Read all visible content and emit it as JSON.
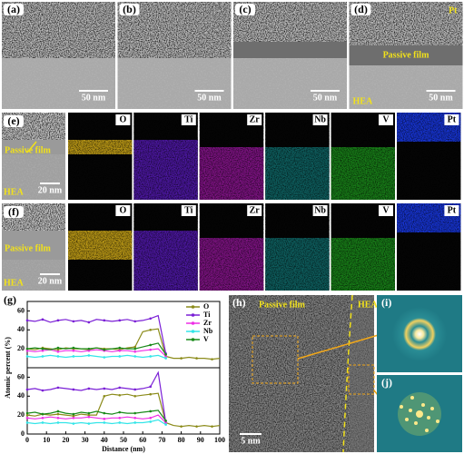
{
  "row1": [
    {
      "label": "(a)",
      "scale": "50 nm"
    },
    {
      "label": "(b)",
      "scale": "50 nm"
    },
    {
      "label": "(c)",
      "scale": "50 nm"
    },
    {
      "label": "(d)",
      "scale": "50 nm",
      "top": "Pt",
      "film": "Passive film",
      "base": "HEA"
    }
  ],
  "row_e": {
    "label": "(e)",
    "film": "Passive film",
    "base": "HEA",
    "scale": "20 nm",
    "elements": [
      "O",
      "Ti",
      "Zr",
      "Nb",
      "V",
      "Pt"
    ]
  },
  "row_f": {
    "label": "(f)",
    "film": "Passive film",
    "base": "HEA",
    "scale": "20 nm",
    "elements": [
      "O",
      "Ti",
      "Zr",
      "Nb",
      "V",
      "Pt"
    ]
  },
  "g": {
    "label": "(g)"
  },
  "h": {
    "label": "(h)",
    "film": "Passive film",
    "base": "HEA",
    "scale": "5 nm"
  },
  "i": {
    "label": "(i)"
  },
  "j": {
    "label": "(j)"
  },
  "chart_data": [
    {
      "type": "line",
      "ylabel": "Atomic percent (%)",
      "x": [
        0,
        4,
        8,
        12,
        16,
        20,
        24,
        28,
        32,
        36,
        40,
        44,
        48,
        52,
        56,
        60,
        64,
        68,
        72,
        76,
        80,
        84,
        88,
        92,
        96,
        100
      ],
      "xlim": [
        0,
        100
      ],
      "ylim": [
        0,
        70
      ],
      "yticks": [
        20,
        40,
        60
      ],
      "series": [
        {
          "name": "O",
          "color": "#8b8b1a",
          "values": [
            20,
            19,
            21,
            20,
            19,
            21,
            20,
            20,
            19,
            21,
            20,
            20,
            19,
            21,
            22,
            38,
            40,
            41,
            12,
            10,
            10,
            11,
            10,
            10,
            9,
            10
          ]
        },
        {
          "name": "Ti",
          "color": "#7a1fd6",
          "values": [
            50,
            49,
            51,
            48,
            50,
            51,
            49,
            50,
            48,
            51,
            50,
            49,
            50,
            51,
            49,
            50,
            52,
            55,
            15,
            null,
            null,
            null,
            null,
            null,
            null,
            null
          ]
        },
        {
          "name": "Zr",
          "color": "#ee2ee6",
          "values": [
            18,
            17,
            18,
            19,
            17,
            18,
            18,
            17,
            18,
            19,
            18,
            17,
            18,
            18,
            17,
            18,
            19,
            20,
            12,
            null,
            null,
            null,
            null,
            null,
            null,
            null
          ]
        },
        {
          "name": "Nb",
          "color": "#33e5e8",
          "values": [
            12,
            11,
            12,
            13,
            12,
            11,
            12,
            12,
            13,
            12,
            11,
            12,
            12,
            13,
            12,
            11,
            12,
            13,
            10,
            null,
            null,
            null,
            null,
            null,
            null,
            null
          ]
        },
        {
          "name": "V",
          "color": "#1a8a1a",
          "values": [
            20,
            21,
            20,
            19,
            21,
            20,
            21,
            20,
            20,
            21,
            19,
            20,
            21,
            20,
            20,
            22,
            24,
            26,
            14,
            null,
            null,
            null,
            null,
            null,
            null,
            null
          ]
        }
      ]
    },
    {
      "type": "line",
      "xlabel": "Distance (nm)",
      "x": [
        0,
        4,
        8,
        12,
        16,
        20,
        24,
        28,
        32,
        36,
        40,
        44,
        48,
        52,
        56,
        60,
        64,
        68,
        72,
        76,
        80,
        84,
        88,
        92,
        96,
        100
      ],
      "xlim": [
        0,
        100
      ],
      "xticks": [
        0,
        10,
        20,
        30,
        40,
        50,
        60,
        70,
        80,
        90,
        100
      ],
      "ylim": [
        0,
        70
      ],
      "yticks": [
        0,
        20,
        40,
        60
      ],
      "series": [
        {
          "color": "#8b8b1a",
          "values": [
            20,
            19,
            21,
            20,
            21,
            20,
            19,
            21,
            20,
            20,
            40,
            42,
            41,
            42,
            40,
            41,
            42,
            43,
            12,
            9,
            8,
            9,
            8,
            9,
            8,
            9
          ]
        },
        {
          "color": "#7a1fd6",
          "values": [
            47,
            48,
            46,
            47,
            49,
            48,
            47,
            46,
            48,
            47,
            48,
            47,
            49,
            48,
            47,
            48,
            50,
            65,
            12,
            null,
            null,
            null,
            null,
            null,
            null,
            null
          ]
        },
        {
          "color": "#ee2ee6",
          "values": [
            17,
            16,
            17,
            18,
            17,
            16,
            17,
            17,
            18,
            17,
            16,
            17,
            17,
            18,
            17,
            16,
            17,
            20,
            12,
            null,
            null,
            null,
            null,
            null,
            null,
            null
          ]
        },
        {
          "color": "#33e5e8",
          "values": [
            12,
            11,
            12,
            11,
            12,
            12,
            11,
            12,
            11,
            12,
            12,
            11,
            12,
            11,
            12,
            12,
            13,
            15,
            10,
            null,
            null,
            null,
            null,
            null,
            null,
            null
          ]
        },
        {
          "color": "#1a8a1a",
          "values": [
            22,
            23,
            21,
            22,
            24,
            22,
            21,
            23,
            22,
            24,
            22,
            21,
            23,
            22,
            22,
            23,
            24,
            25,
            14,
            null,
            null,
            null,
            null,
            null,
            null,
            null
          ]
        }
      ]
    }
  ]
}
